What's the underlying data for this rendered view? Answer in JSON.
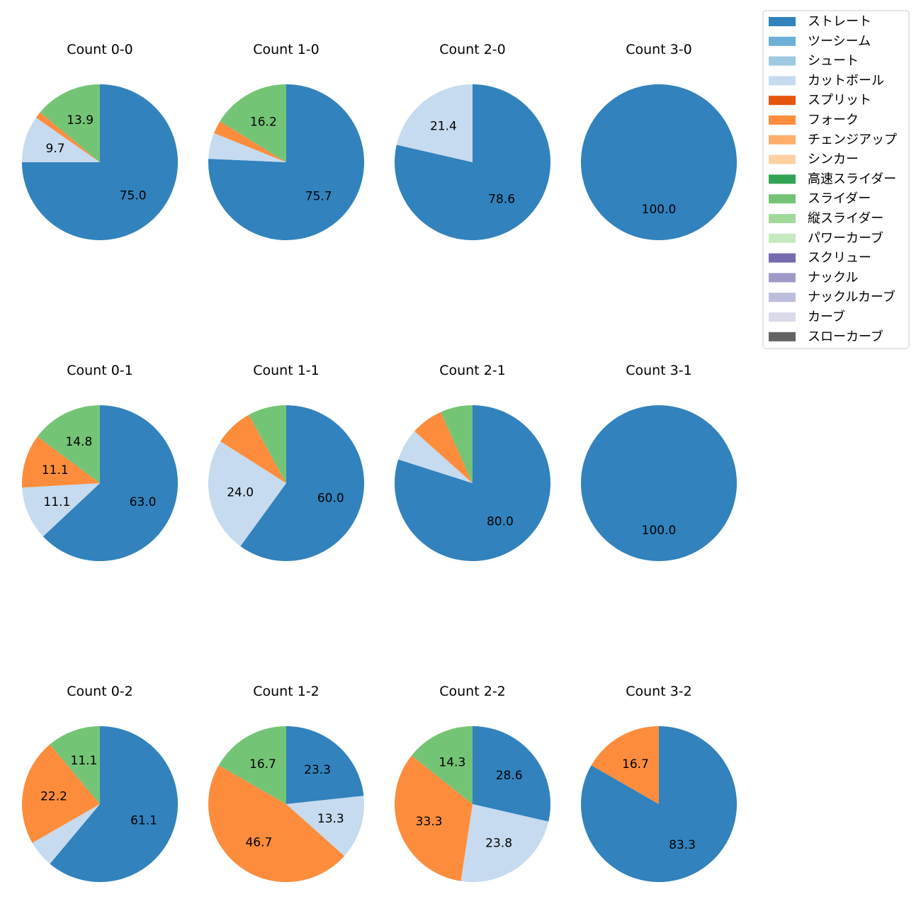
{
  "chart_data": {
    "type": "pie",
    "legend": {
      "placement": "top-right",
      "entries": [
        {
          "name": "ストレート",
          "color": "#3182bd"
        },
        {
          "name": "ツーシーム",
          "color": "#6baed6"
        },
        {
          "name": "シュート",
          "color": "#9ecae1"
        },
        {
          "name": "カットボール",
          "color": "#c6dbef"
        },
        {
          "name": "スプリット",
          "color": "#e6550d"
        },
        {
          "name": "フォーク",
          "color": "#fd8d3c"
        },
        {
          "name": "チェンジアップ",
          "color": "#fdae6b"
        },
        {
          "name": "シンカー",
          "color": "#fdd0a2"
        },
        {
          "name": "高速スライダー",
          "color": "#31a354"
        },
        {
          "name": "スライダー",
          "color": "#74c476"
        },
        {
          "name": "縦スライダー",
          "color": "#a1d99b"
        },
        {
          "name": "パワーカーブ",
          "color": "#c7e9c0"
        },
        {
          "name": "スクリュー",
          "color": "#756bb1"
        },
        {
          "name": "ナックル",
          "color": "#9e9ac8"
        },
        {
          "name": "ナックルカーブ",
          "color": "#bcbddc"
        },
        {
          "name": "カーブ",
          "color": "#dadaeb"
        },
        {
          "name": "スローカーブ",
          "color": "#636363"
        }
      ]
    },
    "charts": [
      {
        "title": "Count 0-0",
        "slices": [
          {
            "name": "ストレート",
            "value": 75.0
          },
          {
            "name": "カットボール",
            "value": 9.7
          },
          {
            "name": "フォーク",
            "value": 1.4
          },
          {
            "name": "スライダー",
            "value": 13.9
          }
        ]
      },
      {
        "title": "Count 1-0",
        "slices": [
          {
            "name": "ストレート",
            "value": 75.7
          },
          {
            "name": "カットボール",
            "value": 5.4
          },
          {
            "name": "フォーク",
            "value": 2.7
          },
          {
            "name": "スライダー",
            "value": 16.2
          }
        ]
      },
      {
        "title": "Count 2-0",
        "slices": [
          {
            "name": "ストレート",
            "value": 78.6
          },
          {
            "name": "カットボール",
            "value": 21.4
          }
        ]
      },
      {
        "title": "Count 3-0",
        "slices": [
          {
            "name": "ストレート",
            "value": 100.0
          }
        ]
      },
      {
        "title": "Count 0-1",
        "slices": [
          {
            "name": "ストレート",
            "value": 63.0
          },
          {
            "name": "カットボール",
            "value": 11.1
          },
          {
            "name": "フォーク",
            "value": 11.1
          },
          {
            "name": "スライダー",
            "value": 14.8
          }
        ]
      },
      {
        "title": "Count 1-1",
        "slices": [
          {
            "name": "ストレート",
            "value": 60.0
          },
          {
            "name": "カットボール",
            "value": 24.0
          },
          {
            "name": "フォーク",
            "value": 8.0
          },
          {
            "name": "スライダー",
            "value": 8.0
          }
        ]
      },
      {
        "title": "Count 2-1",
        "slices": [
          {
            "name": "ストレート",
            "value": 80.0
          },
          {
            "name": "カットボール",
            "value": 6.7
          },
          {
            "name": "フォーク",
            "value": 6.7
          },
          {
            "name": "スライダー",
            "value": 6.7
          }
        ]
      },
      {
        "title": "Count 3-1",
        "slices": [
          {
            "name": "ストレート",
            "value": 100.0
          }
        ]
      },
      {
        "title": "Count 0-2",
        "slices": [
          {
            "name": "ストレート",
            "value": 61.1
          },
          {
            "name": "カットボール",
            "value": 5.6
          },
          {
            "name": "フォーク",
            "value": 22.2
          },
          {
            "name": "スライダー",
            "value": 11.1
          }
        ]
      },
      {
        "title": "Count 1-2",
        "slices": [
          {
            "name": "ストレート",
            "value": 23.3
          },
          {
            "name": "カットボール",
            "value": 13.3
          },
          {
            "name": "フォーク",
            "value": 46.7
          },
          {
            "name": "スライダー",
            "value": 16.7
          }
        ]
      },
      {
        "title": "Count 2-2",
        "slices": [
          {
            "name": "ストレート",
            "value": 28.6
          },
          {
            "name": "カットボール",
            "value": 23.8
          },
          {
            "name": "フォーク",
            "value": 33.3
          },
          {
            "name": "スライダー",
            "value": 14.3
          }
        ]
      },
      {
        "title": "Count 3-2",
        "slices": [
          {
            "name": "ストレート",
            "value": 83.3
          },
          {
            "name": "フォーク",
            "value": 16.7
          }
        ]
      }
    ]
  }
}
